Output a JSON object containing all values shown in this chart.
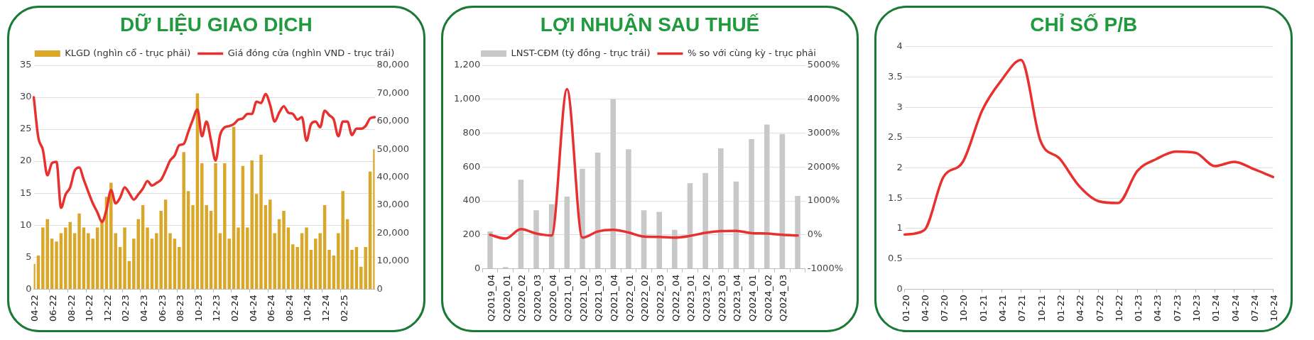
{
  "chart_data": [
    {
      "type": "bar",
      "title": "DỮ LIỆU GIAO DỊCH",
      "legend": "top",
      "grid": "y",
      "categories": [
        "04-22",
        null,
        null,
        null,
        "06-22",
        null,
        null,
        null,
        "08-22",
        null,
        null,
        null,
        "10-22",
        null,
        null,
        null,
        "12-22",
        null,
        null,
        null,
        "02-23",
        null,
        null,
        null,
        "04-23",
        null,
        null,
        null,
        "06-23",
        null,
        null,
        null,
        "08-23",
        null,
        null,
        null,
        "10-23",
        null,
        null,
        null,
        "12-23",
        null,
        null,
        null,
        "02-24",
        null,
        null,
        null,
        "04-24",
        null,
        null,
        null,
        "06-24",
        null,
        null,
        null,
        "08-24",
        null,
        null,
        null,
        "10-24",
        null,
        null,
        null,
        "12-24",
        null,
        null,
        null,
        "02-25",
        null,
        null,
        null,
        null,
        null,
        null,
        null
      ],
      "series": [
        {
          "name": "KLGD (nghìn cổ - trục phải)",
          "type": "bar",
          "axis": "y2",
          "color": "#d9a82b",
          "values": [
            9000,
            12000,
            22000,
            25000,
            18000,
            17000,
            20000,
            22000,
            24000,
            20000,
            27000,
            22000,
            20000,
            18000,
            22000,
            25000,
            33000,
            38000,
            20000,
            15000,
            22000,
            10000,
            18000,
            25000,
            30000,
            22000,
            18000,
            20000,
            28000,
            32000,
            20000,
            18000,
            15000,
            49000,
            35000,
            30000,
            70000,
            45000,
            30000,
            28000,
            45000,
            20000,
            45000,
            18000,
            58000,
            22000,
            44000,
            22000,
            46000,
            34000,
            48000,
            30000,
            32000,
            20000,
            25000,
            28000,
            22000,
            16000,
            15000,
            20000,
            22000,
            14000,
            18000,
            20000,
            30000,
            14000,
            12000,
            20000,
            35000,
            25000,
            14000,
            15000,
            8000,
            15000,
            42000,
            50000
          ]
        },
        {
          "name": "Giá đóng cửa (nghìn VND - trục trái)",
          "type": "line",
          "color": "#e8312f",
          "values": [
            30,
            23.7,
            21.8,
            17.8,
            19.7,
            19.9,
            12.7,
            14.8,
            15.9,
            18.5,
            19,
            17.1,
            15.2,
            13.4,
            12,
            10.5,
            12.4,
            15.5,
            13.4,
            14.3,
            15.9,
            15,
            14,
            14.8,
            15.7,
            16.9,
            16.2,
            16.6,
            17.1,
            18.5,
            20.1,
            20.9,
            22.5,
            22.7,
            24.6,
            26.5,
            28.1,
            23.9,
            26.2,
            23.2,
            20.1,
            24.1,
            25.3,
            25.5,
            25.8,
            26.5,
            26.7,
            27.4,
            27.4,
            29.3,
            29.1,
            30.5,
            28.8,
            26.2,
            27.6,
            28.6,
            27.6,
            27.4,
            26.5,
            26.9,
            23.2,
            25.8,
            26.2,
            25.3,
            27.9,
            27.2,
            26.5,
            23.9,
            26.2,
            26.2,
            24.1,
            25.1,
            25.1,
            25.5,
            26.7,
            26.9
          ]
        }
      ],
      "ylim": [
        0,
        35
      ],
      "yticks": [
        0,
        5,
        10,
        15,
        20,
        25,
        30,
        35
      ],
      "y2lim": [
        0,
        80000
      ],
      "y2ticks": [
        {
          "value": 0,
          "label": "0"
        },
        {
          "value": 10000,
          "label": "10,000"
        },
        {
          "value": 20000,
          "label": "20,000"
        },
        {
          "value": 30000,
          "label": "30,000"
        },
        {
          "value": 40000,
          "label": "40,000"
        },
        {
          "value": 50000,
          "label": "50,000"
        },
        {
          "value": 60000,
          "label": "60,000"
        },
        {
          "value": 70000,
          "label": "70,000"
        },
        {
          "value": 80000,
          "label": "80,000"
        }
      ]
    },
    {
      "type": "bar",
      "title": "LỢI NHUẬN SAU THUẾ",
      "legend": "top",
      "grid": "y",
      "categories": [
        "Q2019_04",
        "Q2020_01",
        "Q2020_02",
        "Q2020_03",
        "Q2020_04",
        "Q2021_01",
        "Q2021_02",
        "Q2021_03",
        "Q2021_04",
        "Q2022_01",
        "Q2022_02",
        "Q2022_03",
        "Q2022_04",
        "Q2023_01",
        "Q2023_02",
        "Q2023_03",
        "Q2023_04",
        "Q2024_01",
        "Q2024_02",
        "Q2024_03",
        null
      ],
      "series": [
        {
          "name": "LNST-CĐM (tỷ đồng - trục trái)",
          "type": "bar",
          "color": "#c8c8c8",
          "values": [
            220,
            10,
            525,
            345,
            380,
            425,
            590,
            685,
            1000,
            705,
            345,
            335,
            230,
            505,
            565,
            710,
            515,
            765,
            850,
            795,
            430
          ]
        },
        {
          "name": "% so với cùng kỳ - trục phải",
          "type": "line",
          "axis": "y2",
          "color": "#e8312f",
          "values": [
            0,
            -110,
            170,
            40,
            -20,
            4300,
            -80,
            100,
            150,
            70,
            -50,
            -60,
            -80,
            -30,
            60,
            110,
            120,
            50,
            40,
            0,
            -20
          ]
        }
      ],
      "ylim": [
        0,
        1200
      ],
      "yticks": [
        {
          "value": 0,
          "label": "0"
        },
        {
          "value": 200,
          "label": "200"
        },
        {
          "value": 400,
          "label": "400"
        },
        {
          "value": 600,
          "label": "600"
        },
        {
          "value": 800,
          "label": "800"
        },
        {
          "value": 1000,
          "label": "1,000"
        },
        {
          "value": 1200,
          "label": "1,200"
        }
      ],
      "y2lim": [
        -1000,
        5000
      ],
      "y2ticks": [
        {
          "value": -1000,
          "label": "-1000%"
        },
        {
          "value": 0,
          "label": "0%"
        },
        {
          "value": 1000,
          "label": "1000%"
        },
        {
          "value": 2000,
          "label": "2000%"
        },
        {
          "value": 3000,
          "label": "3000%"
        },
        {
          "value": 4000,
          "label": "4000%"
        },
        {
          "value": 5000,
          "label": "5000%"
        }
      ]
    },
    {
      "type": "line",
      "title": "CHỈ SỐ P/B",
      "grid": "y",
      "color": "#e8312f",
      "categories": [
        "01-20",
        "04-20",
        "07-20",
        "10-20",
        "01-21",
        "04-21",
        "07-21",
        "10-21",
        "01-22",
        "04-22",
        "07-22",
        "10-22",
        "01-23",
        "04-23",
        "07-23",
        "10-23",
        "01-24",
        "04-24",
        "07-24",
        "10-24"
      ],
      "values": [
        0.9,
        0.97,
        1.85,
        2.1,
        2.95,
        3.45,
        3.78,
        2.45,
        2.15,
        1.7,
        1.45,
        1.42,
        1.95,
        2.15,
        2.27,
        2.25,
        2.03,
        2.1,
        1.98,
        1.85
      ],
      "ylim": [
        0,
        4
      ],
      "yticks": [
        0,
        0.5,
        1,
        1.5,
        2,
        2.5,
        3,
        3.5,
        4
      ]
    }
  ]
}
